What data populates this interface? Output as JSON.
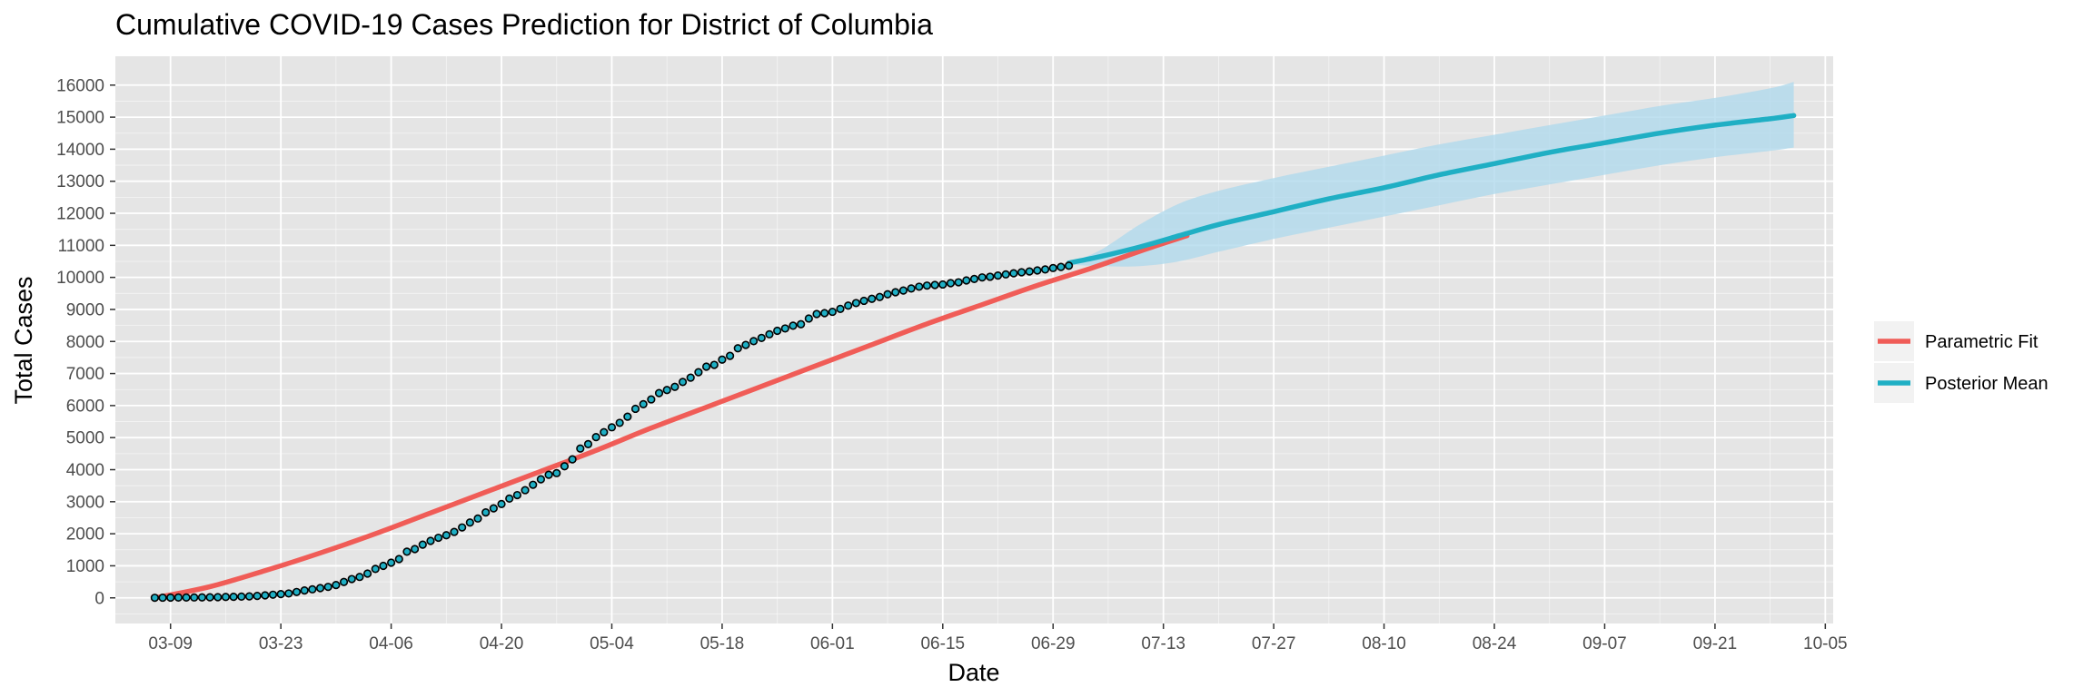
{
  "chart_data": {
    "type": "line",
    "title": "Cumulative COVID-19 Cases Prediction for District of Columbia",
    "xlabel": "Date",
    "ylabel": "Total Cases",
    "x_axis": {
      "type": "date",
      "year": 2020,
      "range": [
        "2020-03-02",
        "2020-10-06"
      ],
      "tick_labels": [
        "03-09",
        "03-23",
        "04-06",
        "04-20",
        "05-04",
        "05-18",
        "06-01",
        "06-15",
        "06-29",
        "07-13",
        "07-27",
        "08-10",
        "08-24",
        "09-07",
        "09-21",
        "10-05"
      ],
      "tick_dates": [
        "2020-03-09",
        "2020-03-23",
        "2020-04-06",
        "2020-04-20",
        "2020-05-04",
        "2020-05-18",
        "2020-06-01",
        "2020-06-15",
        "2020-06-29",
        "2020-07-13",
        "2020-07-27",
        "2020-08-10",
        "2020-08-24",
        "2020-09-07",
        "2020-09-21",
        "2020-10-05"
      ]
    },
    "y_axis": {
      "ylim": [
        -800,
        16900
      ],
      "ticks": [
        0,
        1000,
        2000,
        3000,
        4000,
        5000,
        6000,
        7000,
        8000,
        9000,
        10000,
        11000,
        12000,
        13000,
        14000,
        15000,
        16000
      ]
    },
    "grid": true,
    "legend_position": "right",
    "colors": {
      "panel_background": "#e5e5e5",
      "grid": "#ffffff",
      "parametric_fit": "#f05c57",
      "posterior_mean": "#1fafc4",
      "interval_band": "#b0d9ec",
      "observed_point_fill": "#1fafc4",
      "observed_point_edge": "#000000",
      "legend_key_background": "#f2f2f2"
    },
    "series": [
      {
        "name": "Parametric Fit",
        "style": "line",
        "x": [
          "2020-03-07",
          "2020-03-14",
          "2020-03-21",
          "2020-03-28",
          "2020-04-04",
          "2020-04-11",
          "2020-04-18",
          "2020-04-25",
          "2020-05-02",
          "2020-05-09",
          "2020-05-16",
          "2020-05-23",
          "2020-05-30",
          "2020-06-06",
          "2020-06-13",
          "2020-06-20",
          "2020-06-27",
          "2020-07-04",
          "2020-07-11",
          "2020-07-16"
        ],
        "y": [
          0,
          350,
          850,
          1400,
          2000,
          2650,
          3300,
          3950,
          4600,
          5300,
          5950,
          6600,
          7250,
          7900,
          8550,
          9150,
          9750,
          10300,
          10900,
          11300
        ]
      },
      {
        "name": "Posterior Mean",
        "style": "line",
        "x": [
          "2020-07-01",
          "2020-07-05",
          "2020-07-10",
          "2020-07-15",
          "2020-07-20",
          "2020-07-27",
          "2020-08-03",
          "2020-08-10",
          "2020-08-17",
          "2020-08-24",
          "2020-08-31",
          "2020-09-07",
          "2020-09-14",
          "2020-09-21",
          "2020-09-28",
          "2020-10-01"
        ],
        "y": [
          10450,
          10650,
          10950,
          11300,
          11650,
          12050,
          12450,
          12800,
          13200,
          13550,
          13900,
          14200,
          14500,
          14750,
          14950,
          15050
        ]
      },
      {
        "name": "Posterior interval",
        "style": "band",
        "x": [
          "2020-07-01",
          "2020-07-05",
          "2020-07-10",
          "2020-07-15",
          "2020-07-20",
          "2020-07-27",
          "2020-08-03",
          "2020-08-10",
          "2020-08-17",
          "2020-08-24",
          "2020-08-31",
          "2020-09-07",
          "2020-09-14",
          "2020-09-21",
          "2020-09-28",
          "2020-10-01"
        ],
        "lower": [
          10400,
          10350,
          10350,
          10500,
          10800,
          11200,
          11550,
          11900,
          12250,
          12600,
          12900,
          13200,
          13500,
          13750,
          13950,
          14050
        ],
        "upper": [
          10450,
          10850,
          11650,
          12300,
          12700,
          13100,
          13450,
          13800,
          14150,
          14450,
          14750,
          15050,
          15350,
          15600,
          15900,
          16100
        ]
      },
      {
        "style": "points",
        "x": [
          "2020-03-07",
          "2020-03-08",
          "2020-03-09",
          "2020-03-10",
          "2020-03-11",
          "2020-03-12",
          "2020-03-13",
          "2020-03-14",
          "2020-03-15",
          "2020-03-16",
          "2020-03-17",
          "2020-03-18",
          "2020-03-19",
          "2020-03-20",
          "2020-03-21",
          "2020-03-22",
          "2020-03-23",
          "2020-03-24",
          "2020-03-25",
          "2020-03-26",
          "2020-03-27",
          "2020-03-28",
          "2020-03-29",
          "2020-03-30",
          "2020-03-31",
          "2020-04-01",
          "2020-04-02",
          "2020-04-03",
          "2020-04-04",
          "2020-04-05",
          "2020-04-06",
          "2020-04-07",
          "2020-04-08",
          "2020-04-09",
          "2020-04-10",
          "2020-04-11",
          "2020-04-12",
          "2020-04-13",
          "2020-04-14",
          "2020-04-15",
          "2020-04-16",
          "2020-04-17",
          "2020-04-18",
          "2020-04-19",
          "2020-04-20",
          "2020-04-21",
          "2020-04-22",
          "2020-04-23",
          "2020-04-24",
          "2020-04-25",
          "2020-04-26",
          "2020-04-27",
          "2020-04-28",
          "2020-04-29",
          "2020-04-30",
          "2020-05-01",
          "2020-05-02",
          "2020-05-03",
          "2020-05-04",
          "2020-05-05",
          "2020-05-06",
          "2020-05-07",
          "2020-05-08",
          "2020-05-09",
          "2020-05-10",
          "2020-05-11",
          "2020-05-12",
          "2020-05-13",
          "2020-05-14",
          "2020-05-15",
          "2020-05-16",
          "2020-05-17",
          "2020-05-18",
          "2020-05-19",
          "2020-05-20",
          "2020-05-21",
          "2020-05-22",
          "2020-05-23",
          "2020-05-24",
          "2020-05-25",
          "2020-05-26",
          "2020-05-27",
          "2020-05-28",
          "2020-05-29",
          "2020-05-30",
          "2020-05-31",
          "2020-06-01",
          "2020-06-02",
          "2020-06-03",
          "2020-06-04",
          "2020-06-05",
          "2020-06-06",
          "2020-06-07",
          "2020-06-08",
          "2020-06-09",
          "2020-06-10",
          "2020-06-11",
          "2020-06-12",
          "2020-06-13",
          "2020-06-14",
          "2020-06-15",
          "2020-06-16",
          "2020-06-17",
          "2020-06-18",
          "2020-06-19",
          "2020-06-20",
          "2020-06-21",
          "2020-06-22",
          "2020-06-23",
          "2020-06-24",
          "2020-06-25",
          "2020-06-26",
          "2020-06-27",
          "2020-06-28",
          "2020-06-29",
          "2020-06-30",
          "2020-07-01"
        ],
        "y": [
          2,
          5,
          7,
          10,
          10,
          12,
          15,
          17,
          22,
          29,
          31,
          40,
          47,
          61,
          77,
          98,
          116,
          137,
          183,
          231,
          267,
          304,
          342,
          401,
          495,
          586,
          653,
          757,
          902,
          998,
          1097,
          1211,
          1440,
          1523,
          1660,
          1778,
          1875,
          1955,
          2058,
          2197,
          2350,
          2476,
          2666,
          2793,
          2927,
          3098,
          3206,
          3361,
          3528,
          3699,
          3841,
          3892,
          4106,
          4323,
          4658,
          4797,
          5016,
          5170,
          5322,
          5461,
          5654,
          5899,
          6043,
          6193,
          6389,
          6485,
          6584,
          6736,
          6871,
          7042,
          7215,
          7270,
          7434,
          7551,
          7788,
          7893,
          8011,
          8110,
          8225,
          8334,
          8406,
          8492,
          8538,
          8717,
          8857,
          8886,
          8926,
          9016,
          9120,
          9199,
          9269,
          9332,
          9389,
          9474,
          9537,
          9589,
          9654,
          9709,
          9744,
          9763,
          9779,
          9819,
          9847,
          9904,
          9952,
          9999,
          10020,
          10058,
          10094,
          10128,
          10159,
          10185,
          10216,
          10248,
          10292,
          10327,
          10365
        ]
      }
    ]
  }
}
